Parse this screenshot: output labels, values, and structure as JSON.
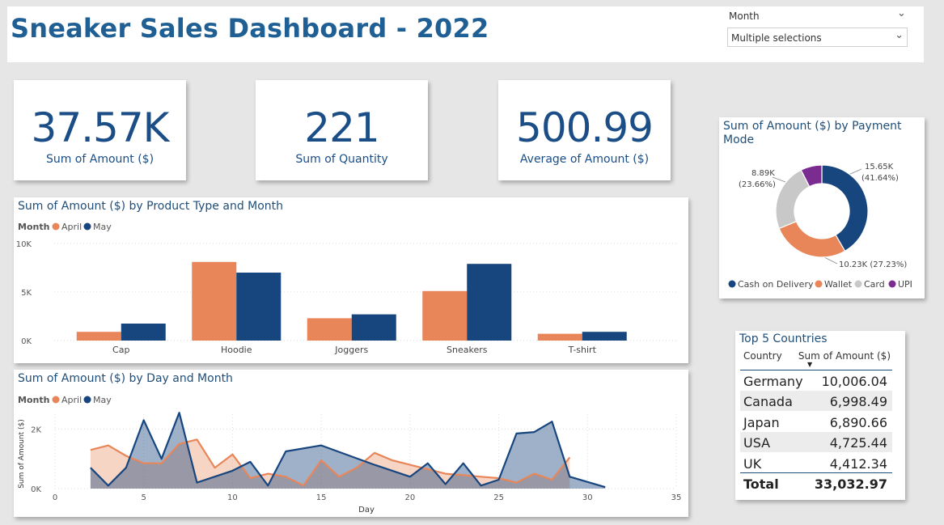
{
  "header": {
    "title": "Sneaker Sales Dashboard - 2022",
    "slicer": {
      "label": "Month",
      "value": "Multiple selections"
    }
  },
  "kpis": [
    {
      "value": "37.57K",
      "label": "Sum of Amount ($)"
    },
    {
      "value": "221",
      "label": "Sum of Quantity"
    },
    {
      "value": "500.99",
      "label": "Average of Amount ($)"
    }
  ],
  "colors": {
    "april": "#e8865a",
    "may": "#17467f",
    "card": "#c8c8c8",
    "upi": "#7b2c91",
    "title": "#1f4e79"
  },
  "chart_data": [
    {
      "type": "bar",
      "title": "Sum of Amount ($) by Product Type and Month",
      "legend_title": "Month",
      "legend": "top-left",
      "categories": [
        "Cap",
        "Hoodie",
        "Joggers",
        "Sneakers",
        "T-shirt"
      ],
      "series": [
        {
          "name": "April",
          "values": [
            900,
            8100,
            2300,
            5100,
            700
          ]
        },
        {
          "name": "May",
          "values": [
            1750,
            7000,
            2700,
            7900,
            900
          ]
        }
      ],
      "yticks": [
        "0K",
        "5K",
        "10K"
      ],
      "ylim": [
        0,
        10000
      ]
    },
    {
      "type": "area",
      "title": "Sum of Amount ($) by Day and Month",
      "legend_title": "Month",
      "legend": "top-left",
      "xlabel": "Day",
      "ylabel": "Sum of Amount ($)",
      "xlim": [
        0,
        35
      ],
      "ylim": [
        0,
        2500
      ],
      "xticks": [
        "0",
        "5",
        "10",
        "15",
        "20",
        "25",
        "30",
        "35"
      ],
      "yticks": [
        "0K",
        "2K"
      ],
      "series": [
        {
          "name": "April",
          "x": [
            2,
            3,
            4,
            5,
            6,
            7,
            8,
            9,
            10,
            11,
            12,
            13,
            14,
            15,
            16,
            17,
            18,
            19,
            20,
            21,
            22,
            23,
            24,
            25,
            26,
            27,
            28,
            29
          ],
          "y": [
            1300,
            1450,
            1100,
            850,
            850,
            1500,
            1650,
            700,
            1150,
            350,
            500,
            400,
            100,
            950,
            400,
            700,
            1200,
            950,
            800,
            650,
            500,
            450,
            400,
            350,
            200,
            500,
            300,
            1050
          ]
        },
        {
          "name": "May",
          "x": [
            2,
            3,
            4,
            5,
            6,
            7,
            8,
            10,
            11,
            12,
            13,
            15,
            18,
            20,
            21,
            22,
            23,
            24,
            25,
            26,
            27,
            28,
            29,
            31
          ],
          "y": [
            700,
            100,
            700,
            2300,
            1000,
            2550,
            200,
            600,
            900,
            100,
            1250,
            1450,
            800,
            400,
            850,
            150,
            850,
            100,
            300,
            1850,
            1900,
            2250,
            400,
            50
          ]
        }
      ]
    },
    {
      "type": "pie",
      "title": "Sum of Amount ($) by Payment Mode",
      "legend": "bottom",
      "labels": [
        "Cash on Delivery",
        "Wallet",
        "Card",
        "UPI"
      ],
      "values": [
        15650,
        10230,
        8890,
        2800
      ],
      "percents": [
        41.64,
        27.23,
        23.66,
        7.47
      ],
      "data_labels": [
        {
          "value": "15.65K",
          "pct": "(41.64%)"
        },
        {
          "value": "10.23K (27.23%)"
        },
        {
          "value": "8.89K",
          "pct": "(23.66%)"
        }
      ]
    },
    {
      "type": "table",
      "title": "Top 5 Countries",
      "columns": [
        "Country",
        "Sum of Amount ($)"
      ],
      "rows": [
        {
          "country": "Germany",
          "amount": "10,006.04"
        },
        {
          "country": "Canada",
          "amount": "6,998.49"
        },
        {
          "country": "Japan",
          "amount": "6,890.66"
        },
        {
          "country": "USA",
          "amount": "4,725.44"
        },
        {
          "country": "UK",
          "amount": "4,412.34"
        }
      ],
      "total": {
        "label": "Total",
        "amount": "33,032.97"
      }
    }
  ]
}
